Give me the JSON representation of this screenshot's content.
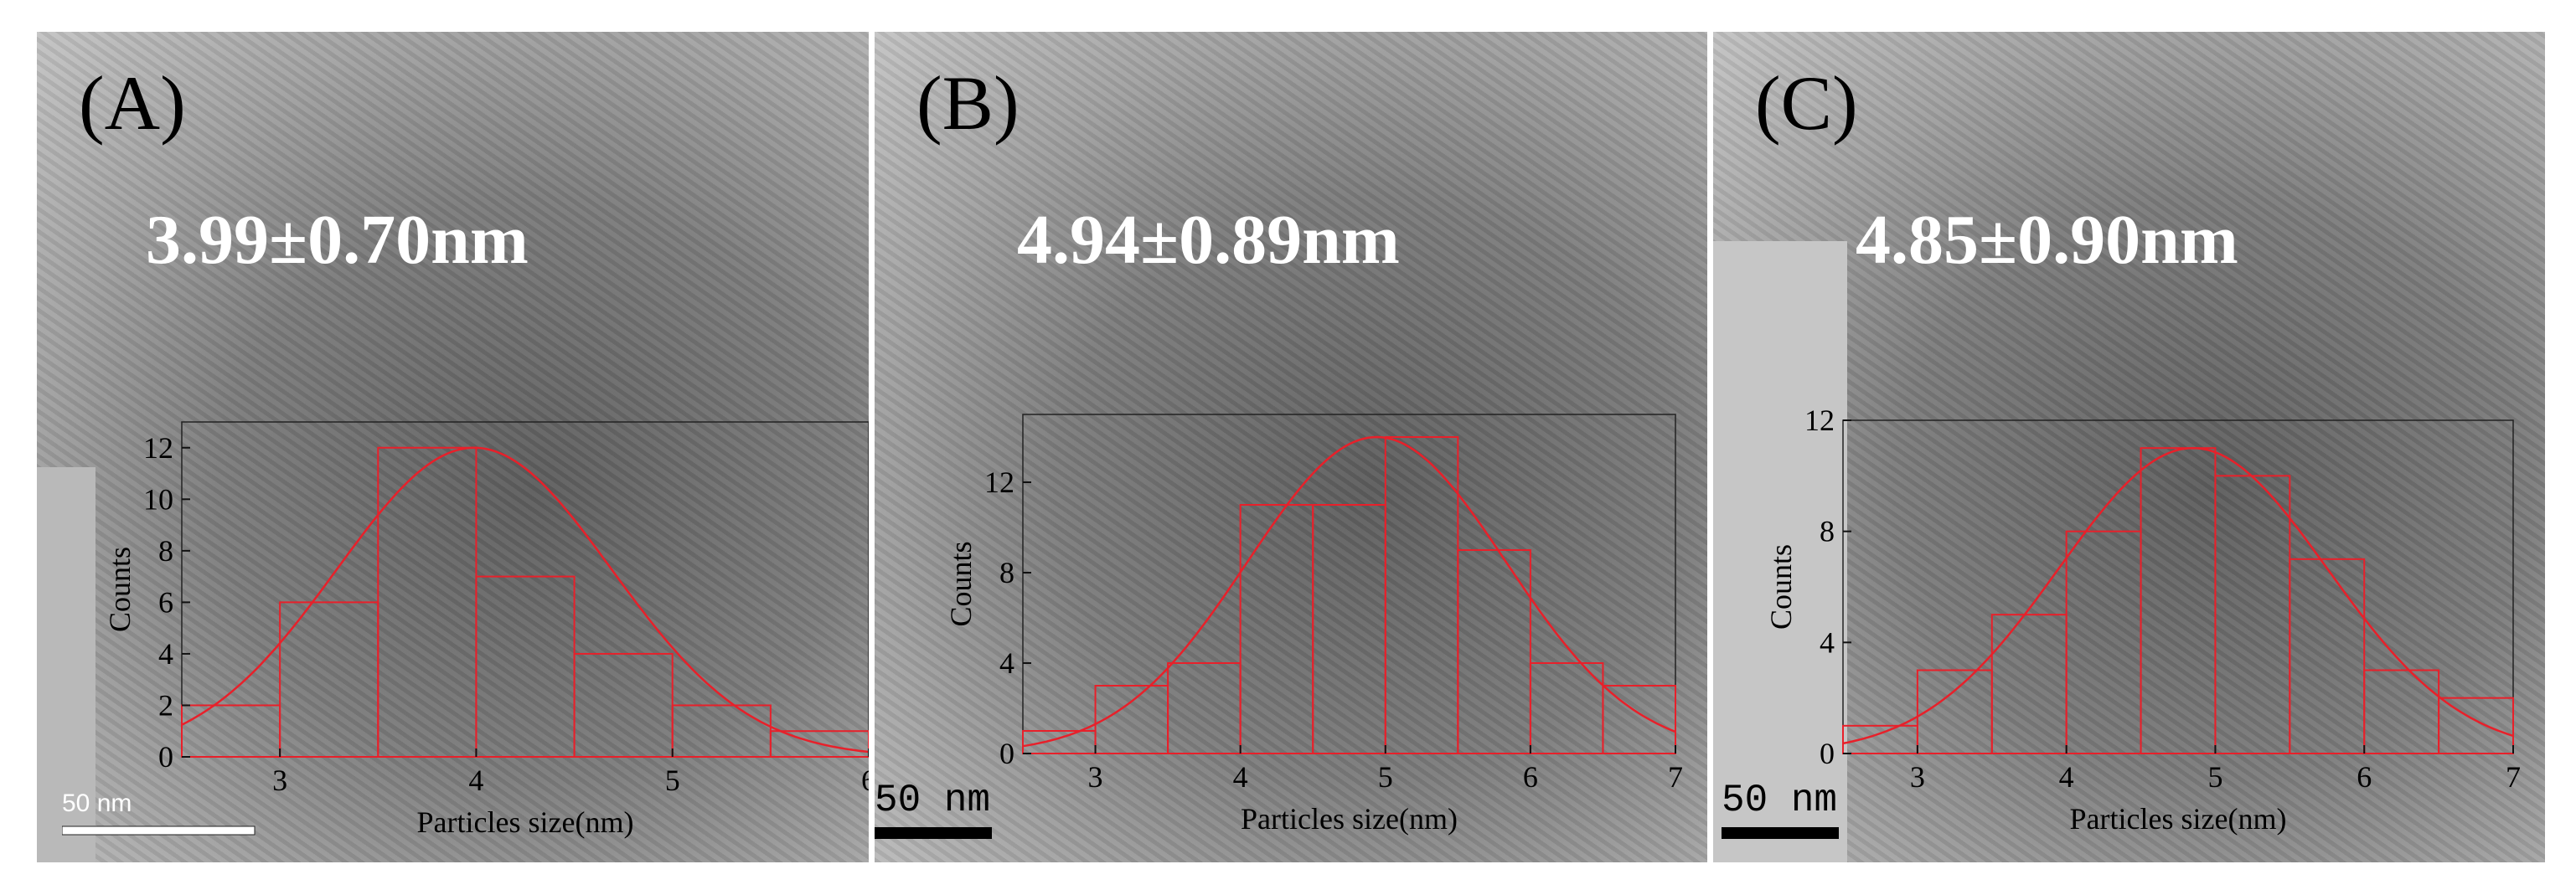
{
  "panels": [
    {
      "label": "(A)",
      "stat": "3.99±0.70nm",
      "scale_bar": "50 nm"
    },
    {
      "label": "(B)",
      "stat": "4.94±0.89nm",
      "scale_bar": "50 nm"
    },
    {
      "label": "(C)",
      "stat": "4.85±0.90nm",
      "scale_bar": "50 nm"
    }
  ],
  "colors": {
    "histogram": "#e8202a",
    "stat_text": "#ffffff"
  },
  "chart_data": [
    {
      "type": "bar",
      "xlabel": "Particles size(nm)",
      "ylabel": "Counts",
      "xlim": [
        2.5,
        6
      ],
      "ylim": [
        0,
        13
      ],
      "xticks": [
        3,
        4,
        5,
        6
      ],
      "yticks": [
        0,
        2,
        4,
        6,
        8,
        10,
        12
      ],
      "bins": [
        {
          "x0": 2.5,
          "x1": 3.0,
          "count": 2
        },
        {
          "x0": 3.0,
          "x1": 3.5,
          "count": 6
        },
        {
          "x0": 3.5,
          "x1": 4.0,
          "count": 12
        },
        {
          "x0": 4.0,
          "x1": 4.5,
          "count": 7
        },
        {
          "x0": 4.5,
          "x1": 5.0,
          "count": 4
        },
        {
          "x0": 5.0,
          "x1": 5.5,
          "count": 2
        },
        {
          "x0": 5.5,
          "x1": 6.0,
          "count": 1
        }
      ],
      "fit": {
        "mean": 3.99,
        "sd": 0.7,
        "peak": 12
      },
      "grid": false
    },
    {
      "type": "bar",
      "xlabel": "Particles size(nm)",
      "ylabel": "Counts",
      "xlim": [
        2.5,
        7
      ],
      "ylim": [
        0,
        15
      ],
      "xticks": [
        3,
        4,
        5,
        6,
        7
      ],
      "yticks": [
        0,
        4,
        8,
        12
      ],
      "bins": [
        {
          "x0": 2.5,
          "x1": 3.0,
          "count": 1
        },
        {
          "x0": 3.0,
          "x1": 3.5,
          "count": 3
        },
        {
          "x0": 3.5,
          "x1": 4.0,
          "count": 4
        },
        {
          "x0": 4.0,
          "x1": 4.5,
          "count": 11
        },
        {
          "x0": 4.5,
          "x1": 5.0,
          "count": 11
        },
        {
          "x0": 5.0,
          "x1": 5.5,
          "count": 14
        },
        {
          "x0": 5.5,
          "x1": 6.0,
          "count": 9
        },
        {
          "x0": 6.0,
          "x1": 6.5,
          "count": 4
        },
        {
          "x0": 6.5,
          "x1": 7.0,
          "count": 3
        }
      ],
      "fit": {
        "mean": 4.94,
        "sd": 0.89,
        "peak": 14
      },
      "grid": false
    },
    {
      "type": "bar",
      "xlabel": "Particles size(nm)",
      "ylabel": "Counts",
      "xlim": [
        2.5,
        7
      ],
      "ylim": [
        0,
        12
      ],
      "xticks": [
        3,
        4,
        5,
        6,
        7
      ],
      "yticks": [
        0,
        4,
        8,
        12
      ],
      "bins": [
        {
          "x0": 2.5,
          "x1": 3.0,
          "count": 1
        },
        {
          "x0": 3.0,
          "x1": 3.5,
          "count": 3
        },
        {
          "x0": 3.5,
          "x1": 4.0,
          "count": 5
        },
        {
          "x0": 4.0,
          "x1": 4.5,
          "count": 8
        },
        {
          "x0": 4.5,
          "x1": 5.0,
          "count": 11
        },
        {
          "x0": 5.0,
          "x1": 5.5,
          "count": 10
        },
        {
          "x0": 5.5,
          "x1": 6.0,
          "count": 7
        },
        {
          "x0": 6.0,
          "x1": 6.5,
          "count": 3
        },
        {
          "x0": 6.5,
          "x1": 7.0,
          "count": 2
        }
      ],
      "fit": {
        "mean": 4.85,
        "sd": 0.9,
        "peak": 11
      },
      "grid": false
    }
  ]
}
